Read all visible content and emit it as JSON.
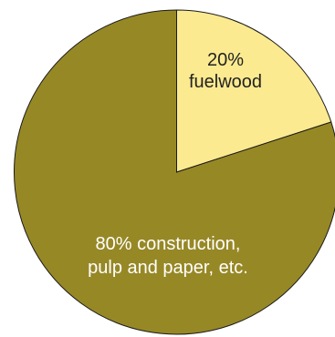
{
  "chart_data": {
    "type": "pie",
    "start_angle_deg": 0,
    "direction": "clockwise",
    "slices": [
      {
        "value": 20,
        "label_lines": [
          "20%",
          "fuelwood"
        ],
        "color": "#fbea8f",
        "label_color": "#222222"
      },
      {
        "value": 80,
        "label_lines": [
          "80% construction,",
          "pulp and paper, etc."
        ],
        "color": "#978826",
        "label_color": "#ffffff"
      }
    ]
  }
}
